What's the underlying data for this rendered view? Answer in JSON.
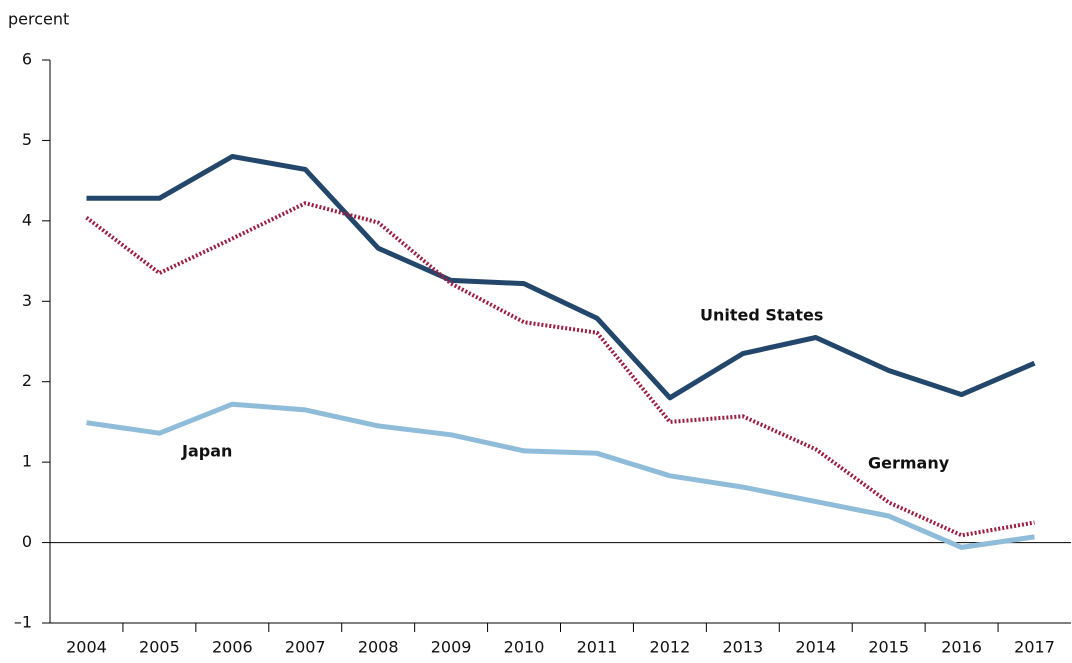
{
  "chart_data": {
    "type": "line",
    "y_axis_label": "percent",
    "categories": [
      "2004",
      "2005",
      "2006",
      "2007",
      "2008",
      "2009",
      "2010",
      "2011",
      "2012",
      "2013",
      "2014",
      "2015",
      "2016",
      "2017"
    ],
    "series": [
      {
        "name": "United States",
        "color": "#22476b",
        "style": "solid",
        "values": [
          4.28,
          4.28,
          4.8,
          4.64,
          3.66,
          3.26,
          3.22,
          2.79,
          1.8,
          2.35,
          2.55,
          2.14,
          1.84,
          2.23
        ]
      },
      {
        "name": "Germany",
        "color": "#9b1d42",
        "style": "dotted",
        "values": [
          4.04,
          3.35,
          3.78,
          4.22,
          3.98,
          3.22,
          2.74,
          2.61,
          1.5,
          1.57,
          1.16,
          0.5,
          0.09,
          0.25
        ]
      },
      {
        "name": "Japan",
        "color": "#8fbdd9",
        "style": "solid",
        "values": [
          1.49,
          1.36,
          1.72,
          1.65,
          1.45,
          1.34,
          1.14,
          1.11,
          0.83,
          0.69,
          0.51,
          0.33,
          -0.06,
          0.07
        ]
      }
    ],
    "ylim": [
      -1,
      6
    ],
    "yticks": [
      {
        "value": -1,
        "label": "–1"
      },
      0,
      1,
      2,
      3,
      4,
      5,
      6
    ],
    "grid": false
  }
}
